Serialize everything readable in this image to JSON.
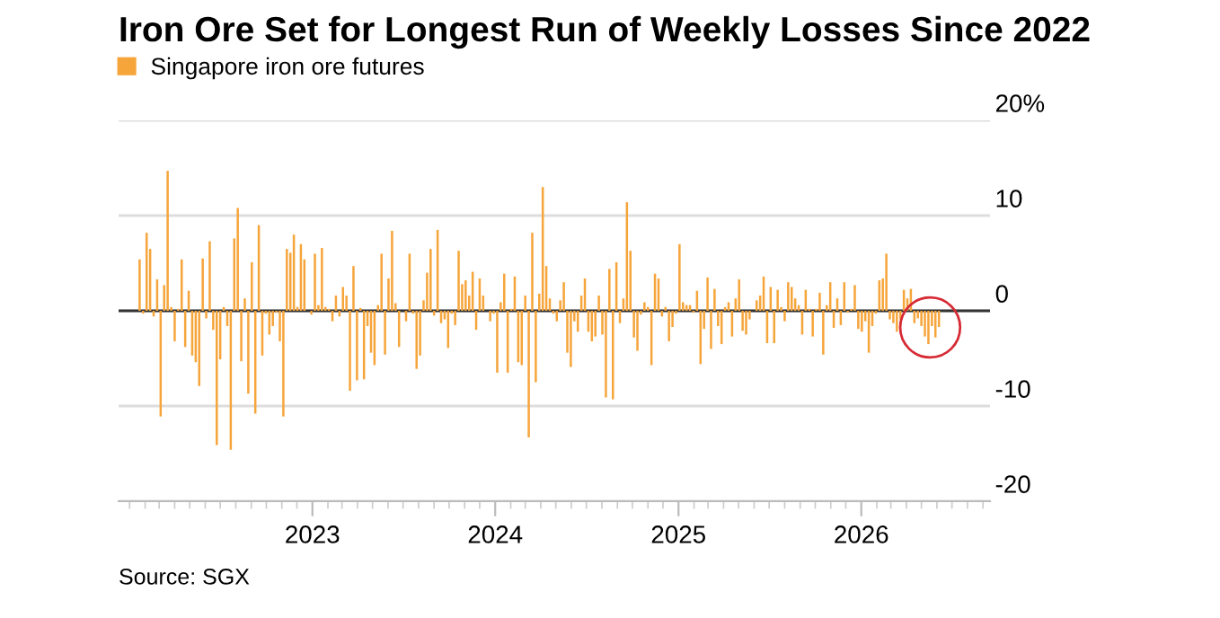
{
  "chart_data": {
    "type": "bar",
    "title": "Iron Ore Set for Longest Run of Weekly Losses Since 2022",
    "annotations": [
      "Source: SGX"
    ],
    "legend": "top left",
    "grid": "y",
    "x": [
      "2022-01-21",
      "2022-01-28",
      "2022-02-04",
      "2022-02-11",
      "2022-02-18",
      "2022-02-25",
      "2022-03-04",
      "2022-03-11",
      "2022-03-18",
      "2022-03-25",
      "2022-04-01",
      "2022-04-08",
      "2022-04-15",
      "2022-04-22",
      "2022-04-29",
      "2022-05-06",
      "2022-05-13",
      "2022-05-20",
      "2022-05-27",
      "2022-06-03",
      "2022-06-10",
      "2022-06-17",
      "2022-06-24",
      "2022-07-01",
      "2022-07-08",
      "2022-07-15",
      "2022-07-22",
      "2022-07-29",
      "2022-08-05",
      "2022-08-12",
      "2022-08-19",
      "2022-08-26",
      "2022-09-02",
      "2022-09-09",
      "2022-09-16",
      "2022-09-23",
      "2022-09-30",
      "2022-10-07",
      "2022-10-14",
      "2022-10-21",
      "2022-10-28",
      "2022-11-04",
      "2022-11-11",
      "2022-11-18",
      "2022-11-25",
      "2022-12-02",
      "2022-12-09",
      "2022-12-16",
      "2022-12-23",
      "2022-12-30",
      "2023-01-06",
      "2023-01-13",
      "2023-01-20",
      "2023-01-27",
      "2023-02-03",
      "2023-02-10",
      "2023-02-17",
      "2023-02-24",
      "2023-03-03",
      "2023-03-10",
      "2023-03-17",
      "2023-03-24",
      "2023-03-31",
      "2023-04-07",
      "2023-04-14",
      "2023-04-21",
      "2023-04-28",
      "2023-05-05",
      "2023-05-12",
      "2023-05-19",
      "2023-05-26",
      "2023-06-02",
      "2023-06-09",
      "2023-06-16",
      "2023-06-23",
      "2023-06-30",
      "2023-07-07",
      "2023-07-14",
      "2023-07-21",
      "2023-07-28",
      "2023-08-04",
      "2023-08-11",
      "2023-08-18",
      "2023-08-25",
      "2023-09-01",
      "2023-09-08",
      "2023-09-15",
      "2023-09-22",
      "2023-09-29",
      "2023-10-06",
      "2023-10-13",
      "2023-10-20",
      "2023-10-27",
      "2023-11-03",
      "2023-11-10",
      "2023-11-17",
      "2023-11-24",
      "2023-12-01",
      "2023-12-08",
      "2023-12-15",
      "2023-12-22",
      "2023-12-29",
      "2024-01-05",
      "2024-01-12",
      "2024-01-19",
      "2024-01-26",
      "2024-02-02",
      "2024-02-09",
      "2024-02-16",
      "2024-02-23",
      "2024-03-01",
      "2024-03-08",
      "2024-03-15",
      "2024-03-22",
      "2024-03-29",
      "2024-04-05",
      "2024-04-12",
      "2024-04-19",
      "2024-04-26",
      "2024-05-03",
      "2024-05-10",
      "2024-05-17",
      "2024-05-24",
      "2024-05-31",
      "2024-06-07",
      "2024-06-14",
      "2024-06-21",
      "2024-06-28",
      "2024-07-05",
      "2024-07-12",
      "2024-07-19",
      "2024-07-26",
      "2024-08-02",
      "2024-08-09",
      "2024-08-16",
      "2024-08-23",
      "2024-08-30",
      "2024-09-06",
      "2024-09-13",
      "2024-09-20",
      "2024-09-27",
      "2024-10-04",
      "2024-10-11",
      "2024-10-18",
      "2024-10-25",
      "2024-11-01",
      "2024-11-08",
      "2024-11-15",
      "2024-11-22",
      "2024-11-29",
      "2024-12-06",
      "2024-12-13",
      "2024-12-20",
      "2024-12-27",
      "2025-01-03",
      "2025-01-10",
      "2025-01-17",
      "2025-01-24",
      "2025-01-31",
      "2025-02-07",
      "2025-02-14",
      "2025-02-21",
      "2025-02-28",
      "2025-03-07",
      "2025-03-14",
      "2025-03-21",
      "2025-03-28",
      "2025-04-04",
      "2025-04-11",
      "2025-04-18",
      "2025-04-25",
      "2025-05-02",
      "2025-05-09",
      "2025-05-16",
      "2025-05-23",
      "2025-05-30",
      "2025-06-06",
      "2025-06-13",
      "2025-06-20",
      "2025-06-27",
      "2025-07-04",
      "2025-07-11",
      "2025-07-18",
      "2025-07-25",
      "2025-08-01",
      "2025-08-08",
      "2025-08-15",
      "2025-08-22",
      "2025-08-29",
      "2025-09-05",
      "2025-09-12",
      "2025-09-19",
      "2025-09-26",
      "2025-10-03",
      "2025-10-10",
      "2025-10-17",
      "2025-10-24",
      "2025-10-31",
      "2025-11-07",
      "2025-11-14",
      "2025-11-21",
      "2025-11-28",
      "2025-12-05",
      "2025-12-12",
      "2025-12-19",
      "2025-12-26",
      "2026-01-02",
      "2026-01-09",
      "2026-01-16",
      "2026-01-23",
      "2026-01-30",
      "2026-02-06",
      "2026-02-13",
      "2026-02-20",
      "2026-02-27",
      "2026-03-06",
      "2026-03-13",
      "2026-03-20",
      "2026-03-27",
      "2026-04-03",
      "2026-04-10",
      "2026-04-17",
      "2026-04-24",
      "2026-05-01",
      "2026-05-08",
      "2026-05-15",
      "2026-05-22",
      "2026-05-29",
      "2026-06-05"
    ],
    "series": [
      {
        "name": "Singapore iron ore futures",
        "color": "#f6a53b",
        "values": [
          5.4,
          -0.3,
          8.2,
          6.5,
          -0.6,
          3.3,
          -11.1,
          2.7,
          14.7,
          0.4,
          -3.2,
          0.2,
          5.4,
          -3.8,
          2.1,
          -4.7,
          -5.4,
          -7.9,
          5.5,
          -0.8,
          7.3,
          -2.0,
          -14.1,
          -5.1,
          0.4,
          -1.6,
          -14.6,
          7.6,
          10.8,
          -5.3,
          1.3,
          -8.7,
          5.1,
          -10.8,
          9.0,
          -4.7,
          -0.3,
          -2.5,
          -1.6,
          -0.2,
          -3.2,
          -11.1,
          6.5,
          6.1,
          8.0,
          0.4,
          7.0,
          5.4,
          0,
          -0.4,
          6.0,
          0.6,
          6.6,
          0.4,
          0.2,
          -1.1,
          1.6,
          -0.6,
          2.5,
          1.6,
          -8.4,
          4.7,
          -7.3,
          0.3,
          -7.2,
          -1.6,
          -4.4,
          -5.7,
          0.6,
          6.0,
          -4.6,
          3.4,
          8.4,
          0.8,
          -3.8,
          0,
          -1.1,
          6.0,
          -0.3,
          -6.1,
          -4.7,
          1.1,
          4.0,
          6.5,
          -0.5,
          8.5,
          -1.3,
          -0.9,
          -3.9,
          -0.3,
          -1.5,
          6.3,
          2.8,
          3.2,
          1.6,
          4.1,
          -2.0,
          3.4,
          1.6,
          0,
          -1.1,
          -0.3,
          -6.5,
          0.9,
          3.9,
          -6.5,
          0.2,
          3.6,
          -5.4,
          -5.7,
          1.6,
          -13.3,
          8.2,
          -7.5,
          1.8,
          13.0,
          4.7,
          1.3,
          -0.3,
          -1.1,
          1.1,
          3.0,
          -4.4,
          -5.9,
          -1.1,
          -2.2,
          1.6,
          3.4,
          -2.2,
          -3.2,
          -2.7,
          1.6,
          -2.5,
          -9.1,
          4.4,
          -9.3,
          5.1,
          -1.3,
          1.3,
          11.4,
          6.3,
          -2.8,
          -4.2,
          -0.4,
          0.9,
          0.4,
          -5.7,
          3.9,
          3.4,
          -0.6,
          0.4,
          -3.2,
          -1.7,
          -0.3,
          7.0,
          0.9,
          0.6,
          0.6,
          -0.2,
          2.1,
          -5.6,
          -1.9,
          3.5,
          -4.0,
          2.3,
          -1.6,
          -3.5,
          0.4,
          0.9,
          -2.7,
          1.3,
          3.3,
          -2.1,
          -2.5,
          -0.9,
          0,
          1.1,
          1.6,
          3.6,
          -3.4,
          2.5,
          -3.4,
          2.2,
          0.4,
          -1.1,
          3.0,
          2.5,
          1.3,
          0.6,
          -2.5,
          2.2,
          0.2,
          -2.7,
          0.2,
          1.9,
          -4.6,
          0.6,
          3.0,
          -1.8,
          1.3,
          -1.5,
          3.0,
          -0.2,
          0.2,
          2.7,
          -1.9,
          -2.2,
          -1.1,
          -4.4,
          -1.6,
          -0.3,
          3.2,
          3.4,
          6.0,
          -0.9,
          -1.3,
          -2.2,
          -0.9,
          2.2,
          1.3,
          2.3,
          -1.3,
          -0.8,
          -1.6,
          -2.7,
          -3.5,
          -1.6,
          -2.8,
          -1.7
        ]
      }
    ],
    "xlim": [
      "2021-12-10",
      "2026-09-15"
    ],
    "xticks": [
      {
        "value": "2023-01-01",
        "label": "2023"
      },
      {
        "value": "2024-01-01",
        "label": "2024"
      },
      {
        "value": "2025-01-01",
        "label": "2025"
      },
      {
        "value": "2026-01-01",
        "label": "2026"
      }
    ],
    "ylim": [
      -20,
      20
    ],
    "yticks": [
      {
        "value": 20,
        "label": "20%"
      },
      10,
      0,
      -10,
      -20
    ]
  }
}
